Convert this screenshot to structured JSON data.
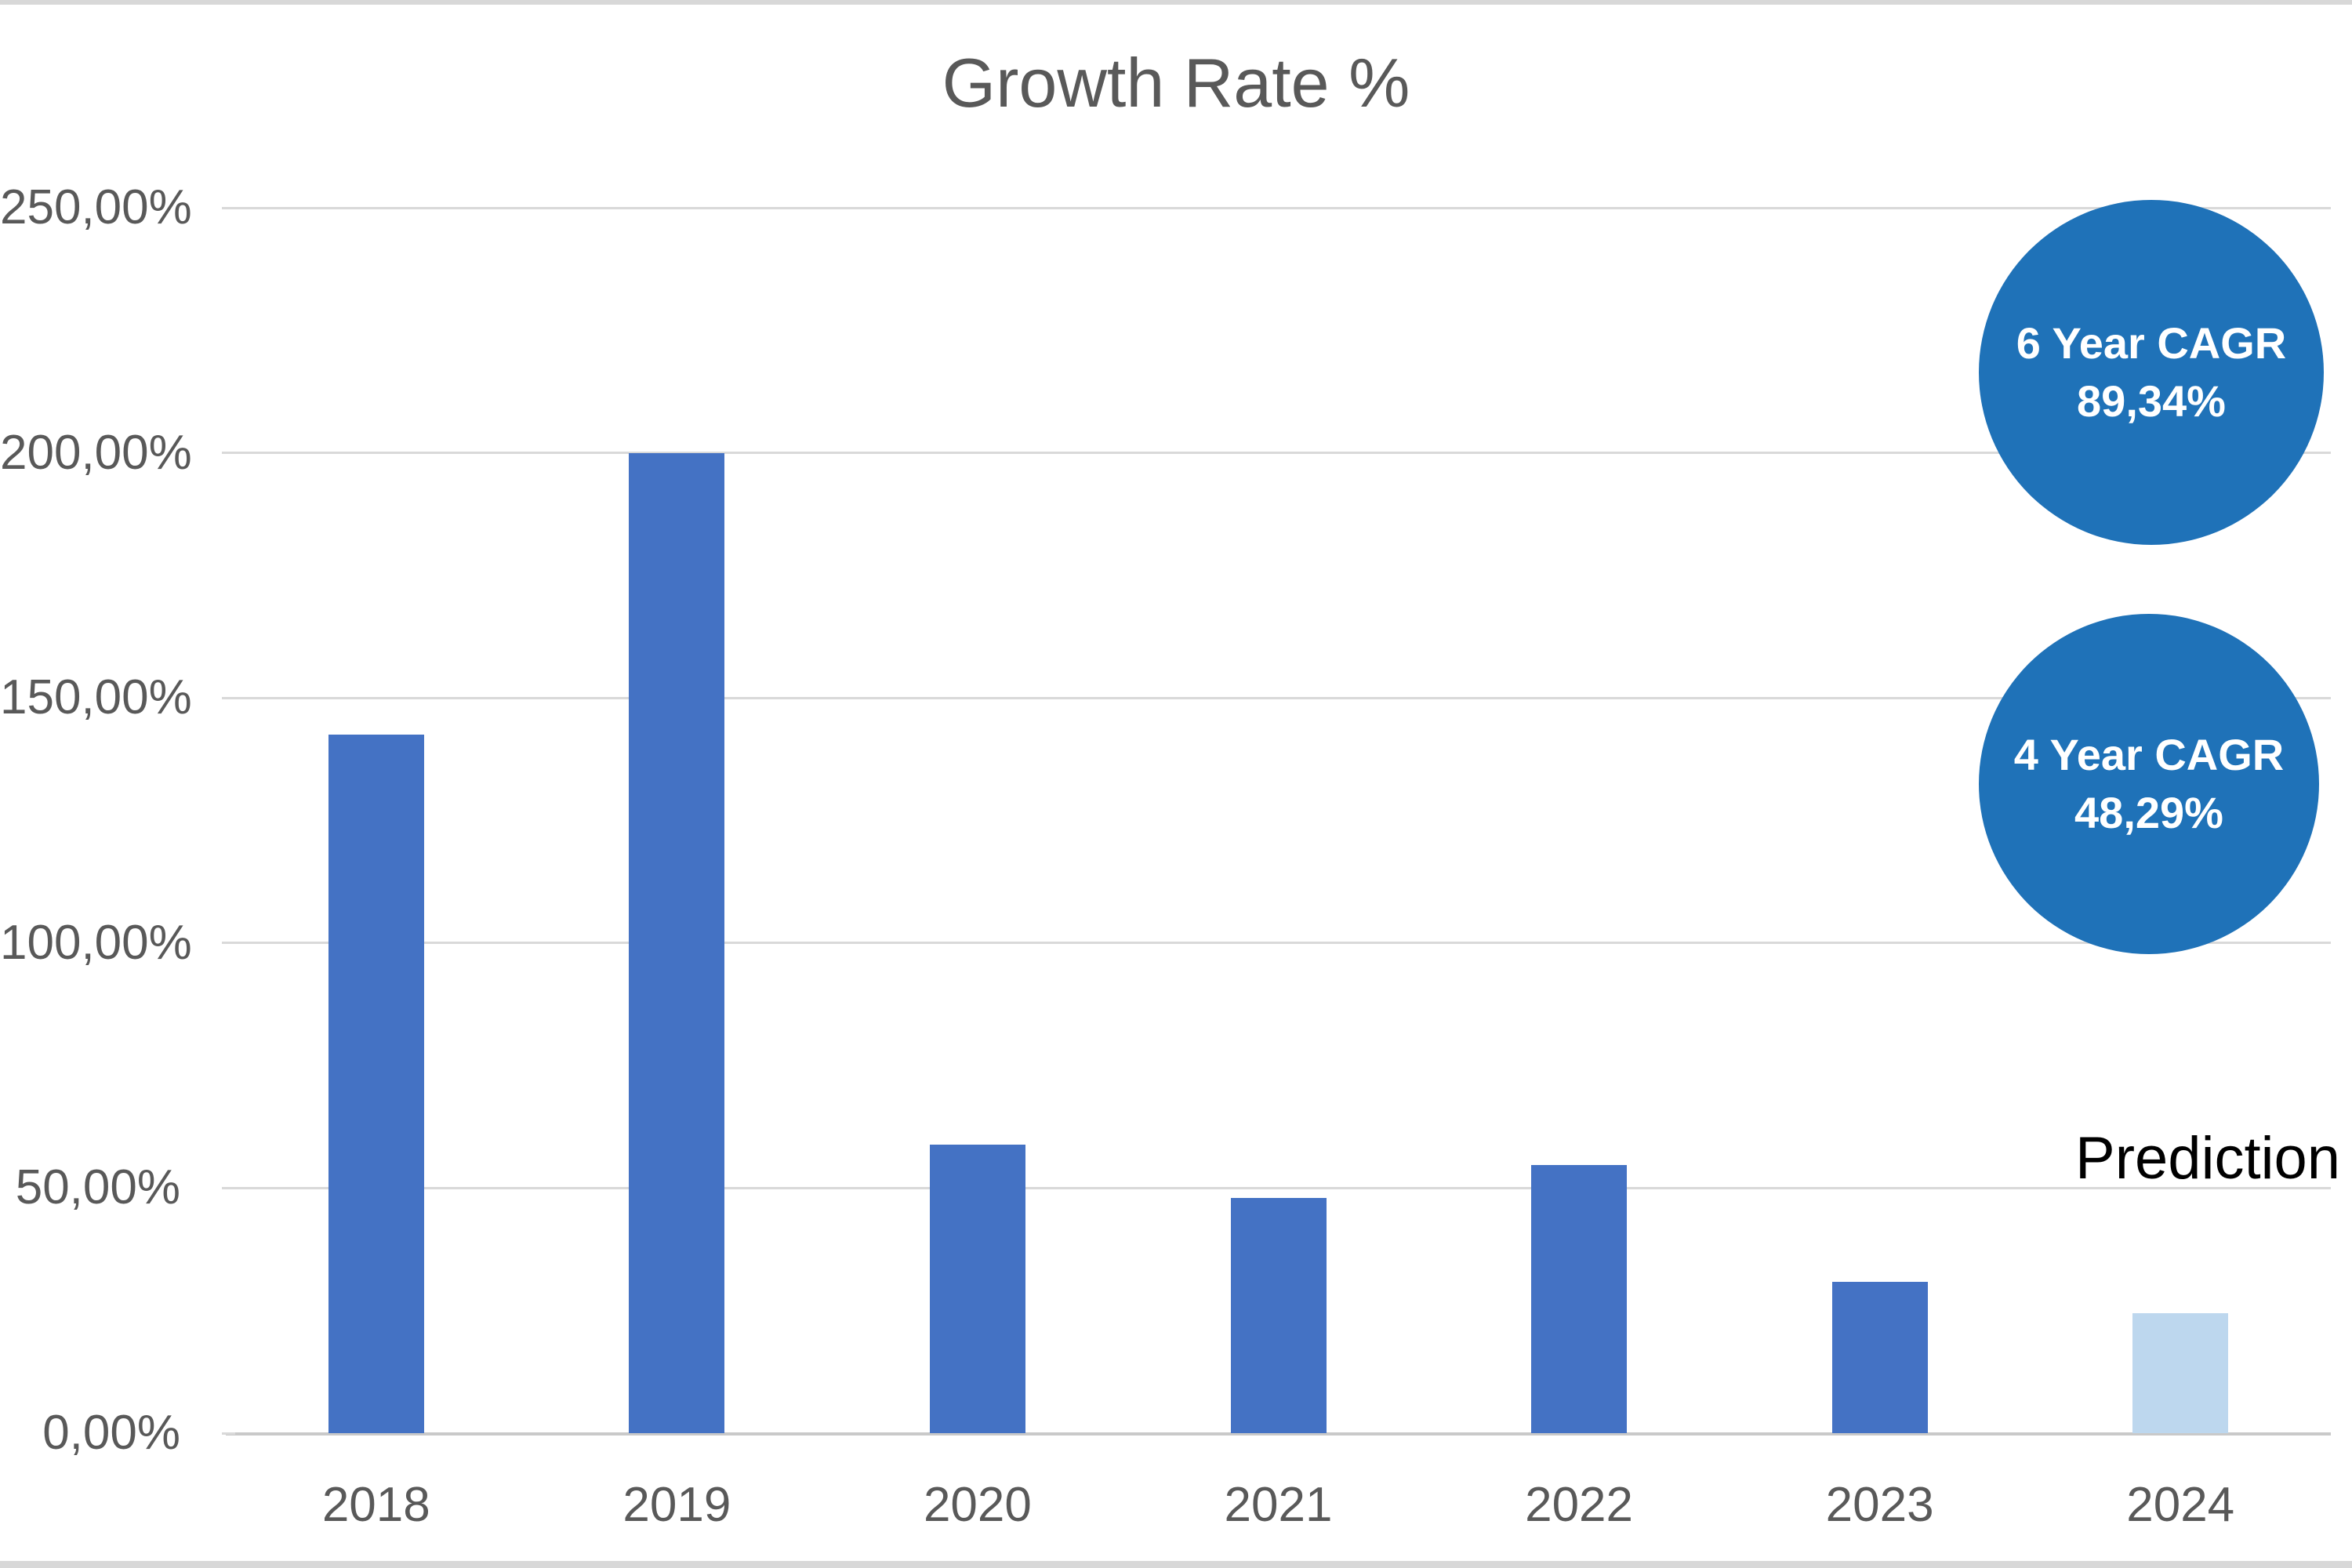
{
  "chart_data": {
    "type": "bar",
    "title": "Growth Rate %",
    "categories": [
      "2018",
      "2019",
      "2020",
      "2021",
      "2022",
      "2023",
      "2024"
    ],
    "values": [
      142.5,
      200.0,
      58.8,
      48.0,
      54.7,
      30.9,
      24.5
    ],
    "xlabel": "",
    "ylabel": "",
    "ylim": [
      0,
      250
    ],
    "grid": true,
    "legend": "none",
    "yticks": [
      {
        "value": 0,
        "label": "0,00%"
      },
      {
        "value": 50,
        "label": "50,00%"
      },
      {
        "value": 100,
        "label": "100,00%"
      },
      {
        "value": 150,
        "label": "150,00%"
      },
      {
        "value": 200,
        "label": "200,00%"
      },
      {
        "value": 250,
        "label": "250,00%"
      }
    ],
    "prediction_index": 6,
    "annotations": [
      {
        "id": "cagr-6yr",
        "shape": "circle",
        "lines": [
          "6 Year CAGR",
          "89,34%"
        ]
      },
      {
        "id": "cagr-4yr",
        "shape": "circle",
        "lines": [
          "4 Year CAGR",
          "48,29%"
        ]
      },
      {
        "id": "prediction-label",
        "shape": "text",
        "text": "Prediction"
      }
    ],
    "colors": {
      "bar": "#4472C4",
      "prediction_bar": "#BDD7EE",
      "circle": "#1F72B8",
      "circle_text": "#FFFFFF",
      "title_text": "#595959",
      "axis_text": "#595959",
      "gridline": "#D9D9D9",
      "axis_line": "#C9C9C9",
      "prediction_text": "#000000",
      "frame_strip": "#D8D8D8"
    }
  }
}
